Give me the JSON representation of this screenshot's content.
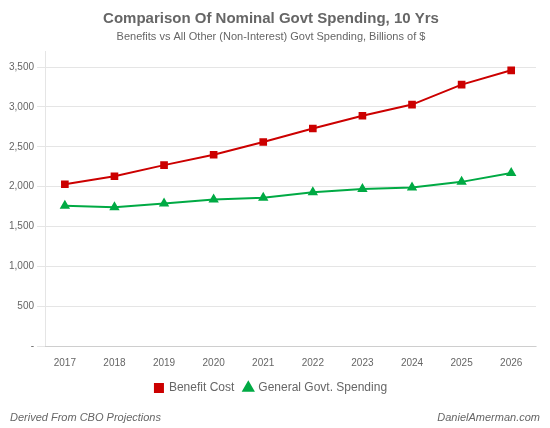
{
  "chart_data": {
    "type": "line",
    "title": "Comparison Of Nominal Govt Spending, 10 Yrs",
    "subtitle": "Benefits vs All Other (Non-Interest) Govt Spending, Billions of $",
    "annotations": [
      "Derived From CBO Projections",
      "DanielAmerman.com"
    ],
    "x": [
      2017,
      2018,
      2019,
      2020,
      2021,
      2022,
      2023,
      2024,
      2025,
      2026
    ],
    "series": [
      {
        "name": "Benefit Cost",
        "color": "#cc0000",
        "marker": "square",
        "values": [
          2030,
          2130,
          2270,
          2400,
          2560,
          2730,
          2890,
          3030,
          3280,
          3460
        ]
      },
      {
        "name": "General Govt. Spending",
        "color": "#00aa44",
        "marker": "triangle",
        "values": [
          1760,
          1740,
          1790,
          1840,
          1860,
          1930,
          1970,
          1990,
          2060,
          2170
        ]
      }
    ],
    "xlim": [
      2016.6,
      2026.5
    ],
    "xticks": [
      2017,
      2018,
      2019,
      2020,
      2021,
      2022,
      2023,
      2024,
      2025,
      2026
    ],
    "ylim": [
      0,
      3700
    ],
    "yticks": [
      {
        "value": 0,
        "label": "-"
      },
      500,
      {
        "value": 1000,
        "label": "1,000"
      },
      {
        "value": 1500,
        "label": "1,500"
      },
      {
        "value": 2000,
        "label": "2,000"
      },
      {
        "value": 2500,
        "label": "2,500"
      },
      {
        "value": 3000,
        "label": "3,000"
      },
      {
        "value": 3500,
        "label": "3,500"
      }
    ],
    "grid": "y",
    "legend": "bottom"
  }
}
